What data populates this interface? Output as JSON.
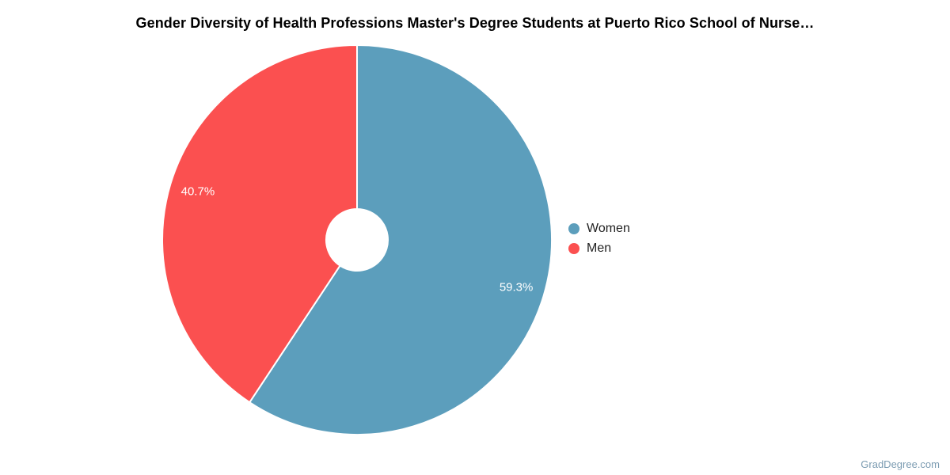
{
  "title": "Gender Diversity of Health Professions Master's Degree Students at Puerto Rico School of Nurse…",
  "watermark": "GradDegree.com",
  "styles": {
    "title_color": "#000000",
    "legend_text_color": "#222222",
    "watermark_color": "#7C9CB2",
    "slice_label_color": "#FFFFFF",
    "slice_separator_color": "#FFFFFF",
    "background": "#FFFFFF"
  },
  "legend": {
    "position": "right",
    "items": [
      {
        "label": "Women",
        "color": "#5C9EBC"
      },
      {
        "label": "Men",
        "color": "#FB5050"
      }
    ]
  },
  "chart_data": {
    "type": "pie",
    "subtype": "donut",
    "title": "Gender Diversity of Health Professions Master's Degree Students at Puerto Rico School of Nurse…",
    "categories": [
      "Women",
      "Men"
    ],
    "values": [
      59.3,
      40.7
    ],
    "slice_labels": [
      "59.3%",
      "40.7%"
    ],
    "colors": [
      "#5C9EBC",
      "#FB5050"
    ],
    "units": "percent",
    "start_angle_deg": 0,
    "direction": "clockwise",
    "donut_hole_ratio": 0.4,
    "legend_position": "right",
    "grid": false
  }
}
